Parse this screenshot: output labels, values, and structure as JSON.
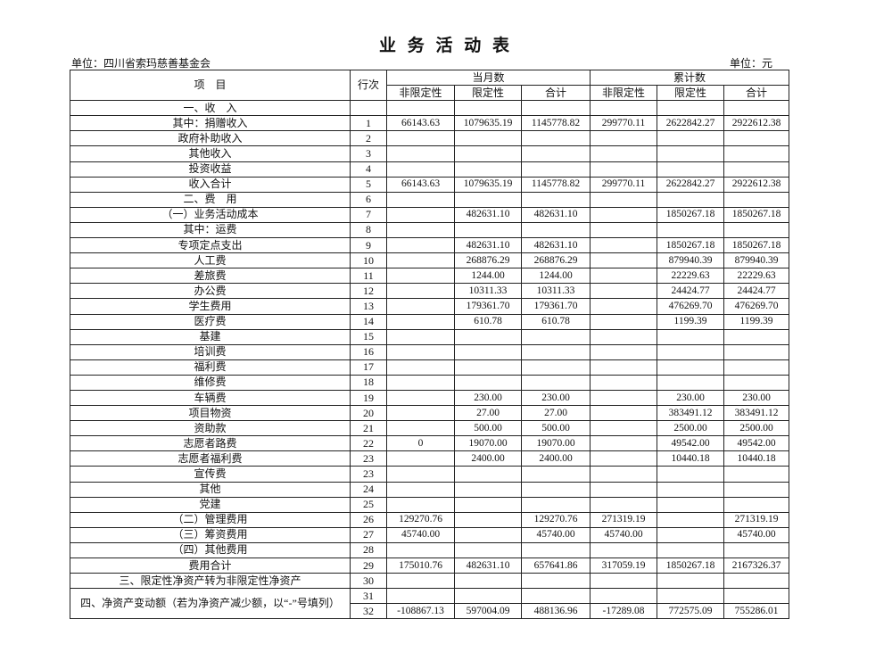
{
  "header": {
    "title": "业 务 活 动 表",
    "unit_left": "单位：四川省索玛慈善基金会",
    "unit_right": "单位：元"
  },
  "table": {
    "head": {
      "item": "项　目",
      "line": "行次",
      "month": "当月数",
      "cumulative": "累计数",
      "sub": [
        "非限定性",
        "限定性",
        "合计",
        "非限定性",
        "限定性",
        "合计"
      ]
    },
    "rows": [
      [
        "一、收　入",
        null,
        null,
        null,
        null,
        null,
        null,
        null
      ],
      [
        "其中：捐赠收入",
        "1",
        "66143.63",
        "1079635.19",
        "1145778.82",
        "299770.11",
        "2622842.27",
        "2922612.38"
      ],
      [
        "政府补助收入",
        "2",
        null,
        null,
        null,
        null,
        null,
        null
      ],
      [
        "其他收入",
        "3",
        null,
        null,
        null,
        null,
        null,
        null
      ],
      [
        "投资收益",
        "4",
        null,
        null,
        null,
        null,
        null,
        null
      ],
      [
        "收入合计",
        "5",
        "66143.63",
        "1079635.19",
        "1145778.82",
        "299770.11",
        "2622842.27",
        "2922612.38"
      ],
      [
        "二、费　用",
        "6",
        null,
        null,
        null,
        null,
        null,
        null
      ],
      [
        "（一）业务活动成本",
        "7",
        null,
        "482631.10",
        "482631.10",
        null,
        "1850267.18",
        "1850267.18"
      ],
      [
        "其中：运费",
        "8",
        null,
        null,
        null,
        null,
        null,
        null
      ],
      [
        "专项定点支出",
        "9",
        null,
        "482631.10",
        "482631.10",
        null,
        "1850267.18",
        "1850267.18"
      ],
      [
        "人工费",
        "10",
        null,
        "268876.29",
        "268876.29",
        null,
        "879940.39",
        "879940.39"
      ],
      [
        "差旅费",
        "11",
        null,
        "1244.00",
        "1244.00",
        null,
        "22229.63",
        "22229.63"
      ],
      [
        "办公费",
        "12",
        null,
        "10311.33",
        "10311.33",
        null,
        "24424.77",
        "24424.77"
      ],
      [
        "学生费用",
        "13",
        null,
        "179361.70",
        "179361.70",
        null,
        "476269.70",
        "476269.70"
      ],
      [
        "医疗费",
        "14",
        null,
        "610.78",
        "610.78",
        null,
        "1199.39",
        "1199.39"
      ],
      [
        "基建",
        "15",
        null,
        null,
        null,
        null,
        null,
        null
      ],
      [
        "培训费",
        "16",
        null,
        null,
        null,
        null,
        null,
        null
      ],
      [
        "福利费",
        "17",
        null,
        null,
        null,
        null,
        null,
        null
      ],
      [
        "维修费",
        "18",
        null,
        null,
        null,
        null,
        null,
        null
      ],
      [
        "车辆费",
        "19",
        null,
        "230.00",
        "230.00",
        null,
        "230.00",
        "230.00"
      ],
      [
        "项目物资",
        "20",
        null,
        "27.00",
        "27.00",
        null,
        "383491.12",
        "383491.12"
      ],
      [
        "资助款",
        "21",
        null,
        "500.00",
        "500.00",
        null,
        "2500.00",
        "2500.00"
      ],
      [
        "志愿者路费",
        "22",
        "0",
        "19070.00",
        "19070.00",
        null,
        "49542.00",
        "49542.00"
      ],
      [
        "志愿者福利费",
        "23",
        null,
        "2400.00",
        "2400.00",
        null,
        "10440.18",
        "10440.18"
      ],
      [
        "宣传费",
        "23",
        null,
        null,
        null,
        null,
        null,
        null
      ],
      [
        "其他",
        "24",
        null,
        null,
        null,
        null,
        null,
        null
      ],
      [
        "党建",
        "25",
        null,
        null,
        null,
        null,
        null,
        null
      ],
      [
        "（二）管理费用",
        "26",
        "129270.76",
        null,
        "129270.76",
        "271319.19",
        null,
        "271319.19"
      ],
      [
        "（三）筹资费用",
        "27",
        "45740.00",
        null,
        "45740.00",
        "45740.00",
        null,
        "45740.00"
      ],
      [
        "（四）其他费用",
        "28",
        null,
        null,
        null,
        null,
        null,
        null
      ],
      [
        "费用合计",
        "29",
        "175010.76",
        "482631.10",
        "657641.86",
        "317059.19",
        "1850267.18",
        "2167326.37"
      ],
      [
        "三、限定性净资产转为非限定性净资产",
        "30",
        null,
        null,
        null,
        null,
        null,
        null
      ],
      [
        "四、净资产变动额（若为净资产减少额，以“-”号填列）",
        "31",
        null,
        null,
        null,
        null,
        null,
        null
      ],
      [
        null,
        "32",
        "-108867.13",
        "597004.09",
        "488136.96",
        "-17289.08",
        "772575.09",
        "755286.01"
      ]
    ]
  }
}
